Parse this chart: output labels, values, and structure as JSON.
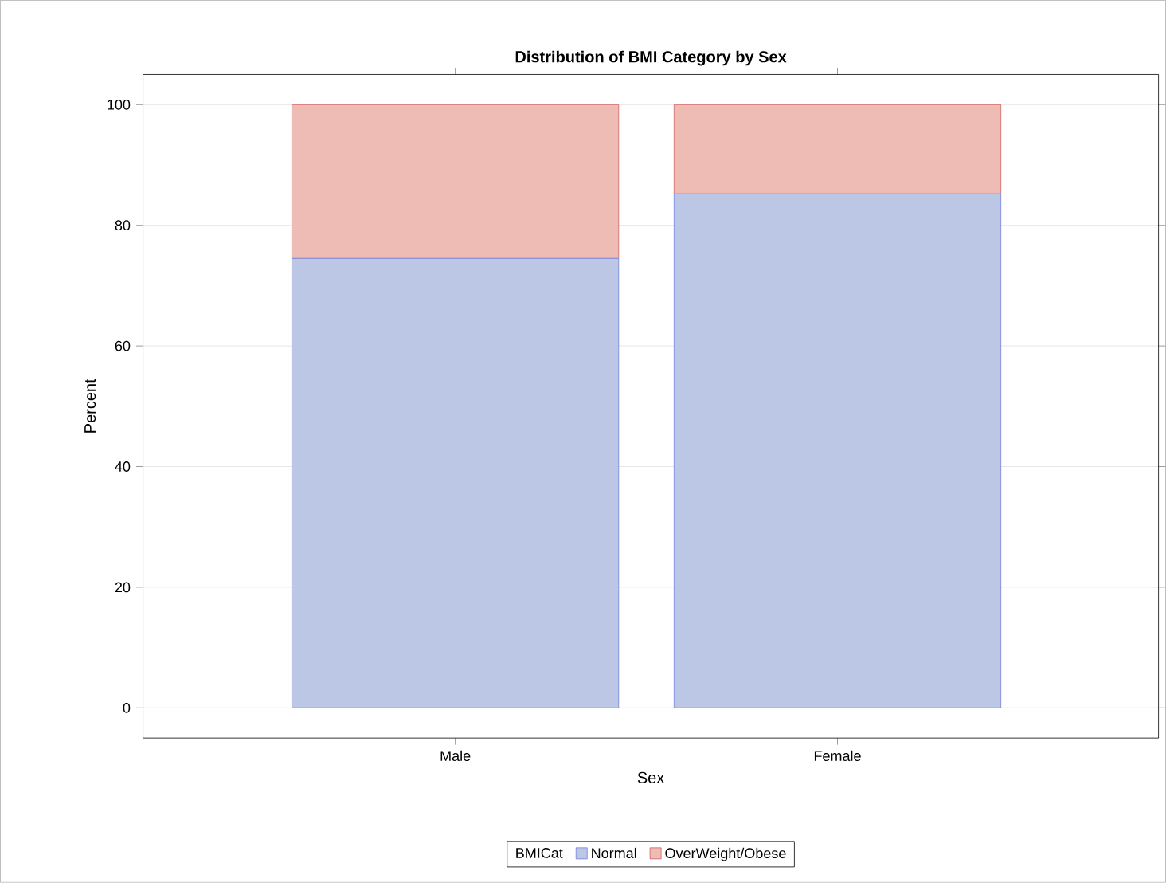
{
  "chart_data": {
    "type": "bar",
    "title": "Distribution of BMI Category by Sex",
    "xlabel": "Sex",
    "ylabel": "Percent",
    "legend_title": "BMICat",
    "categories": [
      "Male",
      "Female"
    ],
    "series": [
      {
        "name": "Normal",
        "color": "#bcc7e6",
        "values": [
          74.5,
          85.2
        ]
      },
      {
        "name": "OverWeight/Obese",
        "color": "#eebcb5",
        "values": [
          25.5,
          14.8
        ]
      }
    ],
    "stacked": true,
    "ylim": [
      -5,
      105
    ],
    "yticks": [
      0,
      20,
      40,
      60,
      80,
      100
    ],
    "grid": "y",
    "legend": "bottom"
  }
}
